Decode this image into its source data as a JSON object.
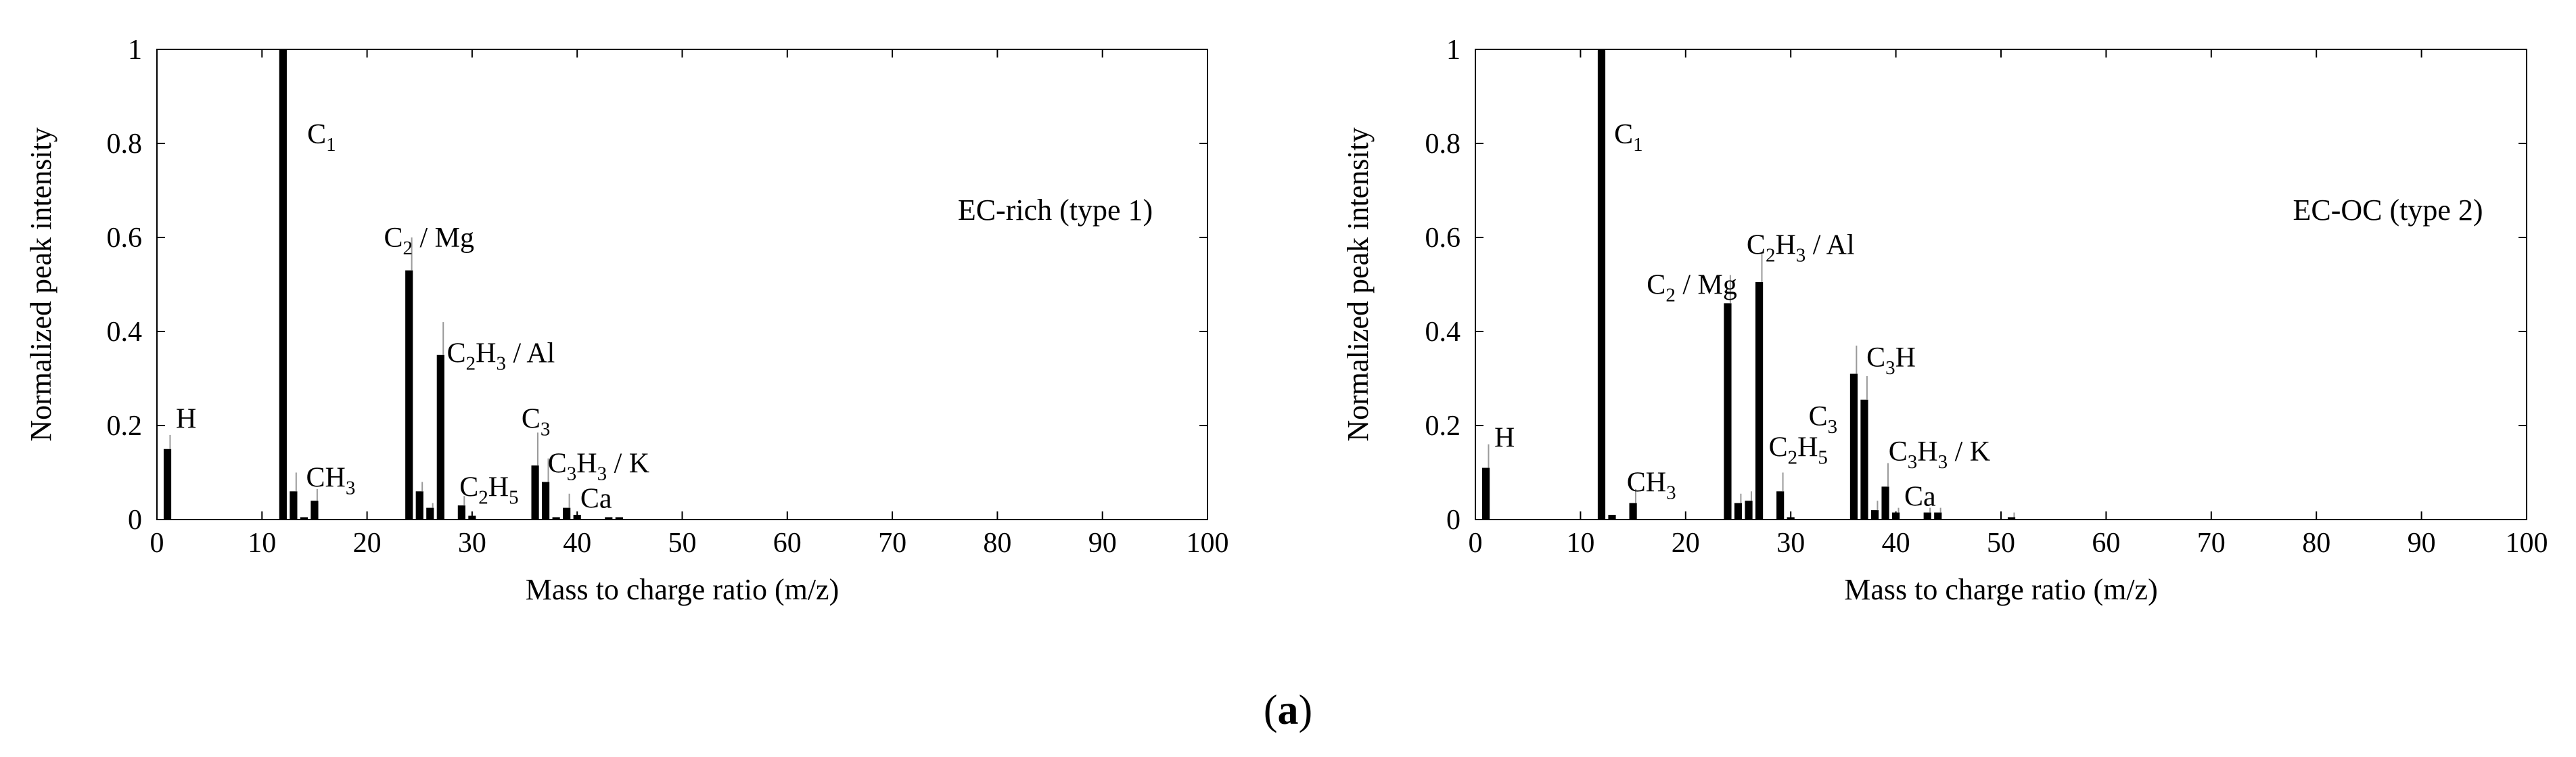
{
  "caption": {
    "open": "(",
    "letter": "a",
    "close": ")"
  },
  "chart_data": [
    {
      "type": "bar",
      "label": "EC-rich (type 1)",
      "xlabel": "Mass to charge ratio (m/z)",
      "ylabel": "Normalized peak intensity",
      "xlim": [
        0,
        100
      ],
      "ylim": [
        0,
        1
      ],
      "xticks": [
        "0",
        "10",
        "20",
        "30",
        "40",
        "50",
        "60",
        "70",
        "80",
        "90",
        "100"
      ],
      "yticks": [
        "0",
        "0.2",
        "0.4",
        "0.6",
        "0.8",
        "1"
      ],
      "x": [
        1,
        12,
        13,
        14,
        15,
        24,
        25,
        26,
        27,
        29,
        30,
        36,
        37,
        38,
        39,
        40,
        43,
        44
      ],
      "values": [
        0.15,
        1.0,
        0.06,
        0.005,
        0.04,
        0.53,
        0.06,
        0.025,
        0.35,
        0.03,
        0.008,
        0.115,
        0.08,
        0.005,
        0.025,
        0.01,
        0.005,
        0.005
      ],
      "errors": [
        0.03,
        0,
        0.04,
        0,
        0.025,
        0.07,
        0.02,
        0.01,
        0.07,
        0.02,
        0,
        0.07,
        0.05,
        0,
        0.03,
        0,
        0,
        0
      ],
      "annotations": [
        {
          "x": 1.8,
          "y": 0.215,
          "main": "H",
          "sub": "",
          "tail": ""
        },
        {
          "x": 14.3,
          "y": 0.82,
          "main": "C",
          "sub": "1",
          "tail": ""
        },
        {
          "x": 14.2,
          "y": 0.09,
          "main": "CH",
          "sub": "3",
          "tail": ""
        },
        {
          "x": 21.6,
          "y": 0.6,
          "main": "C",
          "sub": "2",
          "tail": " / Mg"
        },
        {
          "x": 27.6,
          "y": 0.355,
          "main": "C",
          "sub": "2",
          "tail": "H",
          "sub2": "3",
          "tail2": " / Al"
        },
        {
          "x": 28.8,
          "y": 0.07,
          "main": "C",
          "sub": "2",
          "tail": "H",
          "sub2": "5",
          "tail2": ""
        },
        {
          "x": 34.7,
          "y": 0.215,
          "main": "C",
          "sub": "3",
          "tail": ""
        },
        {
          "x": 37.2,
          "y": 0.12,
          "main": "C",
          "sub": "3",
          "tail": "H",
          "sub2": "3",
          "tail2": " / K"
        },
        {
          "x": 40.3,
          "y": 0.045,
          "main": "Ca",
          "sub": "",
          "tail": ""
        }
      ]
    },
    {
      "type": "bar",
      "label": "EC-OC (type 2)",
      "xlabel": "Mass to charge ratio (m/z)",
      "ylabel": "Normalized peak intensity",
      "xlim": [
        0,
        100
      ],
      "ylim": [
        0,
        1
      ],
      "xticks": [
        "0",
        "10",
        "20",
        "30",
        "40",
        "50",
        "60",
        "70",
        "80",
        "90",
        "100"
      ],
      "yticks": [
        "0",
        "0.2",
        "0.4",
        "0.6",
        "0.8",
        "1"
      ],
      "x": [
        1,
        12,
        13,
        15,
        24,
        25,
        26,
        27,
        29,
        30,
        36,
        37,
        38,
        39,
        40,
        43,
        44,
        51
      ],
      "values": [
        0.11,
        1.0,
        0.01,
        0.035,
        0.46,
        0.035,
        0.04,
        0.505,
        0.06,
        0.005,
        0.31,
        0.255,
        0.02,
        0.07,
        0.015,
        0.015,
        0.015,
        0.005
      ],
      "errors": [
        0.05,
        0,
        0,
        0.03,
        0.06,
        0.02,
        0.02,
        0.06,
        0.04,
        0,
        0.06,
        0.05,
        0.02,
        0.05,
        0.01,
        0.01,
        0.01,
        0.01
      ],
      "annotations": [
        {
          "x": 1.8,
          "y": 0.175,
          "main": "H",
          "sub": "",
          "tail": ""
        },
        {
          "x": 13.2,
          "y": 0.82,
          "main": "C",
          "sub": "1",
          "tail": ""
        },
        {
          "x": 14.4,
          "y": 0.08,
          "main": "CH",
          "sub": "3",
          "tail": ""
        },
        {
          "x": 16.3,
          "y": 0.5,
          "main": "C",
          "sub": "2",
          "tail": " / Mg"
        },
        {
          "x": 25.8,
          "y": 0.585,
          "main": "C",
          "sub": "2",
          "tail": "H",
          "sub2": "3",
          "tail2": " / Al"
        },
        {
          "x": 27.9,
          "y": 0.155,
          "main": "C",
          "sub": "2",
          "tail": "H",
          "sub2": "5",
          "tail2": ""
        },
        {
          "x": 37.2,
          "y": 0.345,
          "main": "C",
          "sub": "3",
          "tail": "H",
          "sub2": "",
          "tail2": ""
        },
        {
          "x": 31.7,
          "y": 0.22,
          "main": "C",
          "sub": "3",
          "tail": ""
        },
        {
          "x": 39.3,
          "y": 0.145,
          "main": "C",
          "sub": "3",
          "tail": "H",
          "sub2": "3",
          "tail2": " / K"
        },
        {
          "x": 40.8,
          "y": 0.05,
          "main": "Ca",
          "sub": "",
          "tail": ""
        }
      ]
    }
  ]
}
